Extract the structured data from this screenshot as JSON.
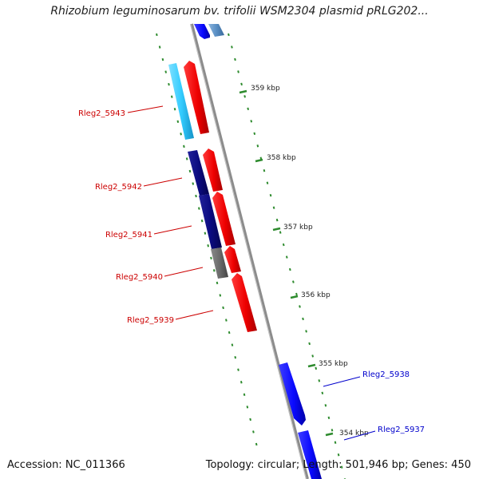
{
  "title": "Rhizobium leguminosarum bv. trifolii WSM2304 plasmid pRLG202...",
  "accession": "Accession: NC_011366",
  "summary": "Topology: circular; Length: 501,946 bp; Genes: 450",
  "ruler": [
    "359 kbp",
    "358 kbp",
    "357 kbp",
    "356 kbp",
    "355 kbp",
    "354 kbp"
  ],
  "genes": [
    {
      "id": "rleg2-5943",
      "label": "Rleg2_5943",
      "color": "#cc0000"
    },
    {
      "id": "rleg2-5942",
      "label": "Rleg2_5942",
      "color": "#cc0000"
    },
    {
      "id": "rleg2-5941",
      "label": "Rleg2_5941",
      "color": "#cc0000"
    },
    {
      "id": "rleg2-5940",
      "label": "Rleg2_5940",
      "color": "#cc0000"
    },
    {
      "id": "rleg2-5939",
      "label": "Rleg2_5939",
      "color": "#cc0000"
    },
    {
      "id": "rleg2-5938",
      "label": "Rleg2_5938",
      "color": "#0000cc"
    },
    {
      "id": "rleg2-5937",
      "label": "Rleg2_5937",
      "color": "#0000cc"
    }
  ],
  "colors": {
    "reverse_strand_cds": "#ff0000",
    "forward_strand_cds": "#0a0aff",
    "cog_cyan": "#33ccff",
    "cog_navy": "#0b0b80",
    "cog_gray": "#6b6b6b",
    "cog_steel": "#5a8fc4",
    "backbone": "#8c8c8c",
    "ticks": "#2e8b2e"
  }
}
